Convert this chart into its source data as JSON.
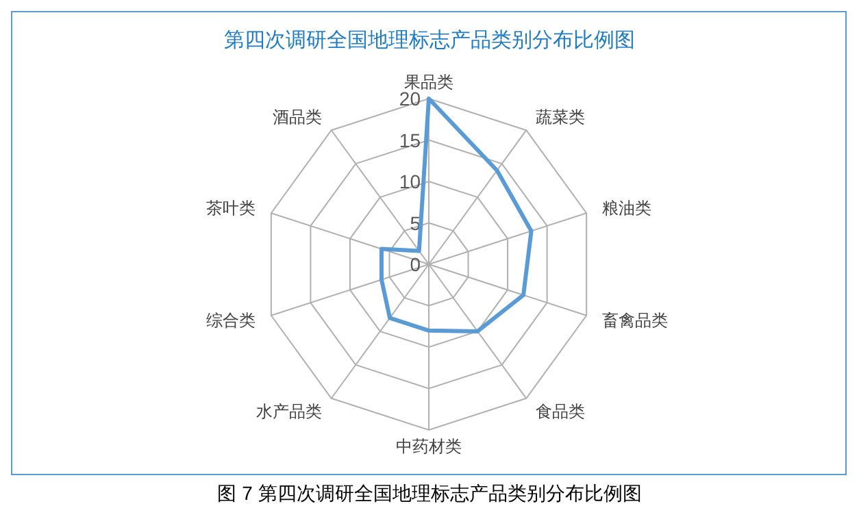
{
  "chart_data": {
    "type": "radar",
    "title": "第四次调研全国地理标志产品类别分布比例图",
    "categories": [
      "果品类",
      "蔬菜类",
      "粮油类",
      "畜禽品类",
      "食品类",
      "中药材类",
      "水产品类",
      "综合类",
      "茶叶类",
      "酒品类"
    ],
    "series": [
      {
        "color": "#5b9bd5",
        "values": [
          20,
          14,
          13,
          12,
          10,
          8,
          8,
          6,
          6,
          2
        ]
      }
    ],
    "ylim": [
      0,
      20
    ],
    "yticks": [
      0,
      5,
      10,
      15,
      20
    ],
    "grid": true,
    "annotations": [
      "图 7 第四次调研全国地理标志产品类别分布比例图"
    ]
  }
}
